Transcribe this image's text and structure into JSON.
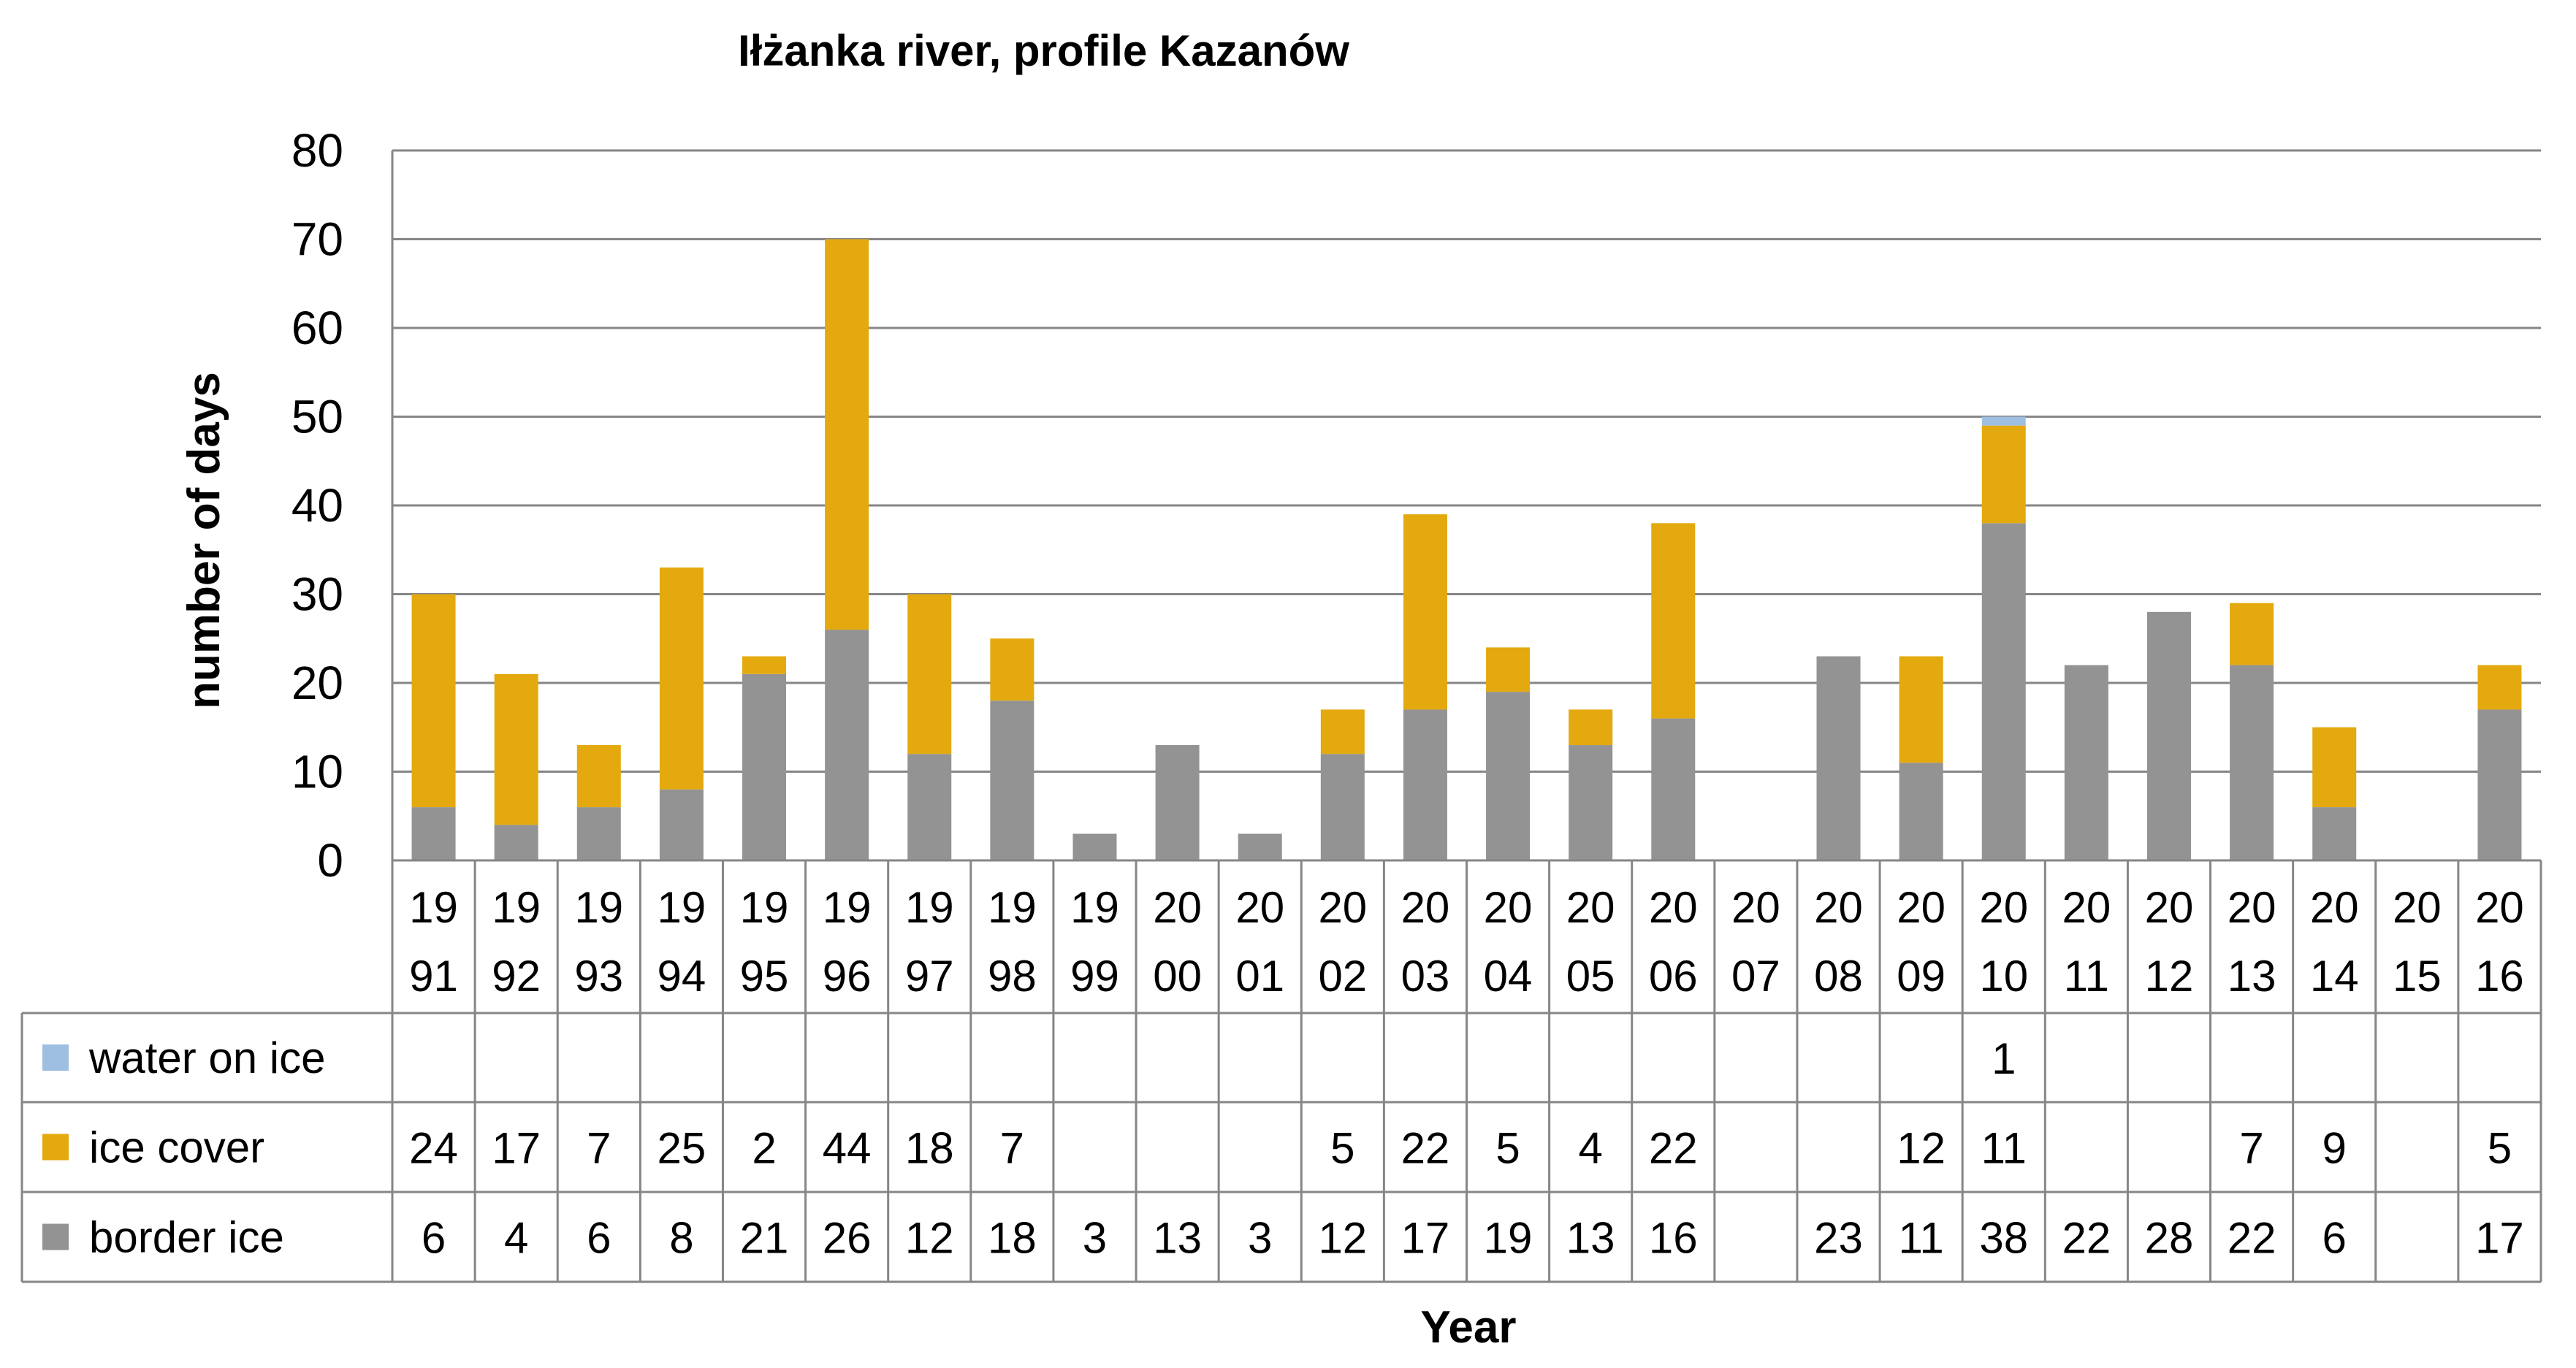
{
  "chart_data": {
    "type": "bar",
    "stacked": true,
    "title": "Iłżanka river,  profile Kazanów",
    "xlabel": "Year",
    "ylabel": "number of days",
    "ylim": [
      0,
      80
    ],
    "yticks": [
      "0",
      "10",
      "20",
      "30",
      "40",
      "50",
      "60",
      "70",
      "80"
    ],
    "grid": true,
    "legend_placement": "data table below the chart",
    "categories": [
      "1991",
      "1992",
      "1993",
      "1994",
      "1995",
      "1996",
      "1997",
      "1998",
      "1999",
      "2000",
      "2001",
      "2002",
      "2003",
      "2004",
      "2005",
      "2006",
      "2007",
      "2008",
      "2009",
      "2010",
      "2011",
      "2012",
      "2013",
      "2014",
      "2015",
      "2016"
    ],
    "category_lines": [
      [
        "19",
        "91"
      ],
      [
        "19",
        "92"
      ],
      [
        "19",
        "93"
      ],
      [
        "19",
        "94"
      ],
      [
        "19",
        "95"
      ],
      [
        "19",
        "96"
      ],
      [
        "19",
        "97"
      ],
      [
        "19",
        "98"
      ],
      [
        "19",
        "99"
      ],
      [
        "20",
        "00"
      ],
      [
        "20",
        "01"
      ],
      [
        "20",
        "02"
      ],
      [
        "20",
        "03"
      ],
      [
        "20",
        "04"
      ],
      [
        "20",
        "05"
      ],
      [
        "20",
        "06"
      ],
      [
        "20",
        "07"
      ],
      [
        "20",
        "08"
      ],
      [
        "20",
        "09"
      ],
      [
        "20",
        "10"
      ],
      [
        "20",
        "11"
      ],
      [
        "20",
        "12"
      ],
      [
        "20",
        "13"
      ],
      [
        "20",
        "14"
      ],
      [
        "20",
        "15"
      ],
      [
        "20",
        "16"
      ]
    ],
    "series": [
      {
        "name": "border ice",
        "color": "#939393",
        "values": [
          6,
          4,
          6,
          8,
          21,
          26,
          12,
          18,
          3,
          13,
          3,
          12,
          17,
          19,
          13,
          16,
          null,
          23,
          11,
          38,
          22,
          28,
          22,
          6,
          null,
          17
        ]
      },
      {
        "name": "ice cover",
        "color": "#e3a90e",
        "values": [
          24,
          17,
          7,
          25,
          2,
          44,
          18,
          7,
          null,
          null,
          null,
          5,
          22,
          5,
          4,
          22,
          null,
          null,
          12,
          11,
          null,
          null,
          7,
          9,
          null,
          5
        ]
      },
      {
        "name": "water on ice",
        "color": "#9ebfe2",
        "values": [
          null,
          null,
          null,
          null,
          null,
          null,
          null,
          null,
          null,
          null,
          null,
          null,
          null,
          null,
          null,
          null,
          null,
          null,
          null,
          1,
          null,
          null,
          null,
          null,
          null,
          null
        ]
      }
    ],
    "table_row_order": [
      "water on ice",
      "ice cover",
      "border ice"
    ]
  }
}
